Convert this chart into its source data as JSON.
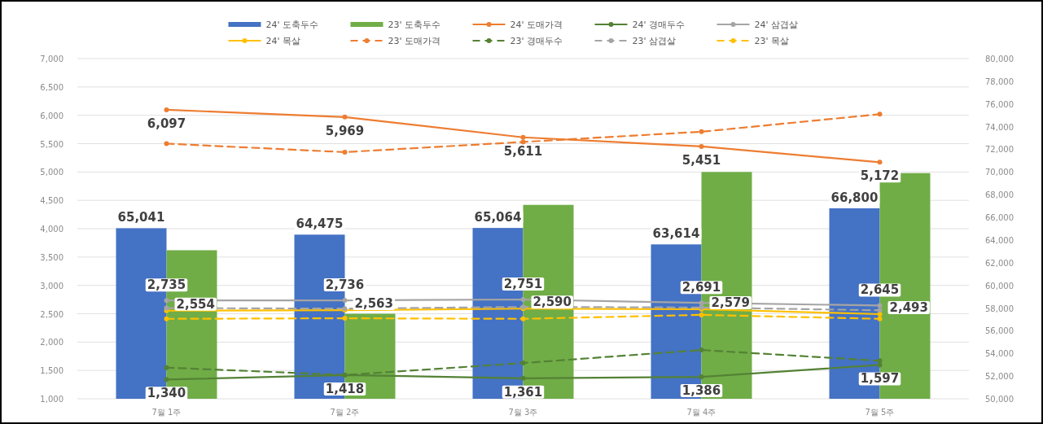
{
  "chart_data": {
    "type": "line",
    "categories": [
      "7월 1주",
      "7월 2주",
      "7월 3주",
      "7월 4주",
      "7월 5주"
    ],
    "ylim": [
      1000,
      7000
    ],
    "yticks": [
      {
        "value": 1000,
        "label": "1,000"
      },
      {
        "value": 1500,
        "label": "1,500"
      },
      {
        "value": 2000,
        "label": "2,000"
      },
      {
        "value": 2500,
        "label": "2,500"
      },
      {
        "value": 3000,
        "label": "3,000"
      },
      {
        "value": 3500,
        "label": "3,500"
      },
      {
        "value": 4000,
        "label": "4,000"
      },
      {
        "value": 4500,
        "label": "4,500"
      },
      {
        "value": 5000,
        "label": "5,000"
      },
      {
        "value": 5500,
        "label": "5,500"
      },
      {
        "value": 6000,
        "label": "6,000"
      },
      {
        "value": 6500,
        "label": "6,500"
      },
      {
        "value": 7000,
        "label": "7,000"
      }
    ],
    "y2lim": [
      50000,
      80000
    ],
    "y2ticks": [
      {
        "value": 50000,
        "label": "50,000"
      },
      {
        "value": 52000,
        "label": "52,000"
      },
      {
        "value": 54000,
        "label": "54,000"
      },
      {
        "value": 56000,
        "label": "56,000"
      },
      {
        "value": 58000,
        "label": "58,000"
      },
      {
        "value": 60000,
        "label": "60,000"
      },
      {
        "value": 62000,
        "label": "62,000"
      },
      {
        "value": 64000,
        "label": "64,000"
      },
      {
        "value": 66000,
        "label": "66,000"
      },
      {
        "value": 68000,
        "label": "68,000"
      },
      {
        "value": 70000,
        "label": "70,000"
      },
      {
        "value": 72000,
        "label": "72,000"
      },
      {
        "value": 74000,
        "label": "74,000"
      },
      {
        "value": 76000,
        "label": "76,000"
      },
      {
        "value": 78000,
        "label": "78,000"
      },
      {
        "value": 80000,
        "label": "80,000"
      }
    ],
    "grid": "y",
    "legend": "top",
    "marker": "circle",
    "series": [
      {
        "name": "24' 도축두수",
        "type": "bar",
        "axis": "y2",
        "color": "#4472c4",
        "values": [
          65041,
          64475,
          65064,
          63614,
          66800
        ],
        "value_labels": [
          "65,041",
          "64,475",
          "65,064",
          "63,614",
          "66,800"
        ]
      },
      {
        "name": "23' 도축두수",
        "type": "bar",
        "axis": "y2",
        "color": "#70ad47",
        "values": [
          63100,
          57500,
          67100,
          70000,
          69900
        ]
      },
      {
        "name": "24' 도매가격",
        "color": "#ed7d31",
        "line_style": "solid",
        "values": [
          6097,
          5969,
          5611,
          5451,
          5172
        ],
        "value_labels": [
          "6,097",
          "5,969",
          "5,611",
          "5,451",
          "5,172"
        ]
      },
      {
        "name": "24' 경매두수",
        "color": "#548235",
        "line_style": "solid",
        "values": [
          1340,
          1418,
          1361,
          1386,
          1597
        ],
        "value_labels": [
          "1,340",
          "1,418",
          "1,361",
          "1,386",
          "1,597"
        ]
      },
      {
        "name": "24' 삼겹살",
        "color": "#a5a5a5",
        "line_style": "solid",
        "values": [
          2735,
          2736,
          2751,
          2691,
          2645
        ],
        "value_labels": [
          "2,735",
          "2,736",
          "2,751",
          "2,691",
          "2,645"
        ]
      },
      {
        "name": "24' 목살",
        "color": "#ffc000",
        "line_style": "solid",
        "values": [
          2554,
          2563,
          2590,
          2579,
          2493
        ],
        "value_labels": [
          "2,554",
          "2,563",
          "2,590",
          "2,579",
          "2,493"
        ]
      },
      {
        "name": "23' 도매가격",
        "color": "#ed7d31",
        "line_style": "dashed",
        "values": [
          5500,
          5350,
          5530,
          5710,
          6020
        ]
      },
      {
        "name": "23' 경매두수",
        "color": "#548235",
        "line_style": "dashed",
        "values": [
          1550,
          1420,
          1630,
          1860,
          1670
        ]
      },
      {
        "name": "23' 삼겹살",
        "color": "#a5a5a5",
        "line_style": "dashed",
        "values": [
          2600,
          2590,
          2620,
          2610,
          2560
        ]
      },
      {
        "name": "23' 목살",
        "color": "#ffc000",
        "line_style": "dashed",
        "values": [
          2410,
          2420,
          2410,
          2480,
          2410
        ]
      }
    ]
  }
}
